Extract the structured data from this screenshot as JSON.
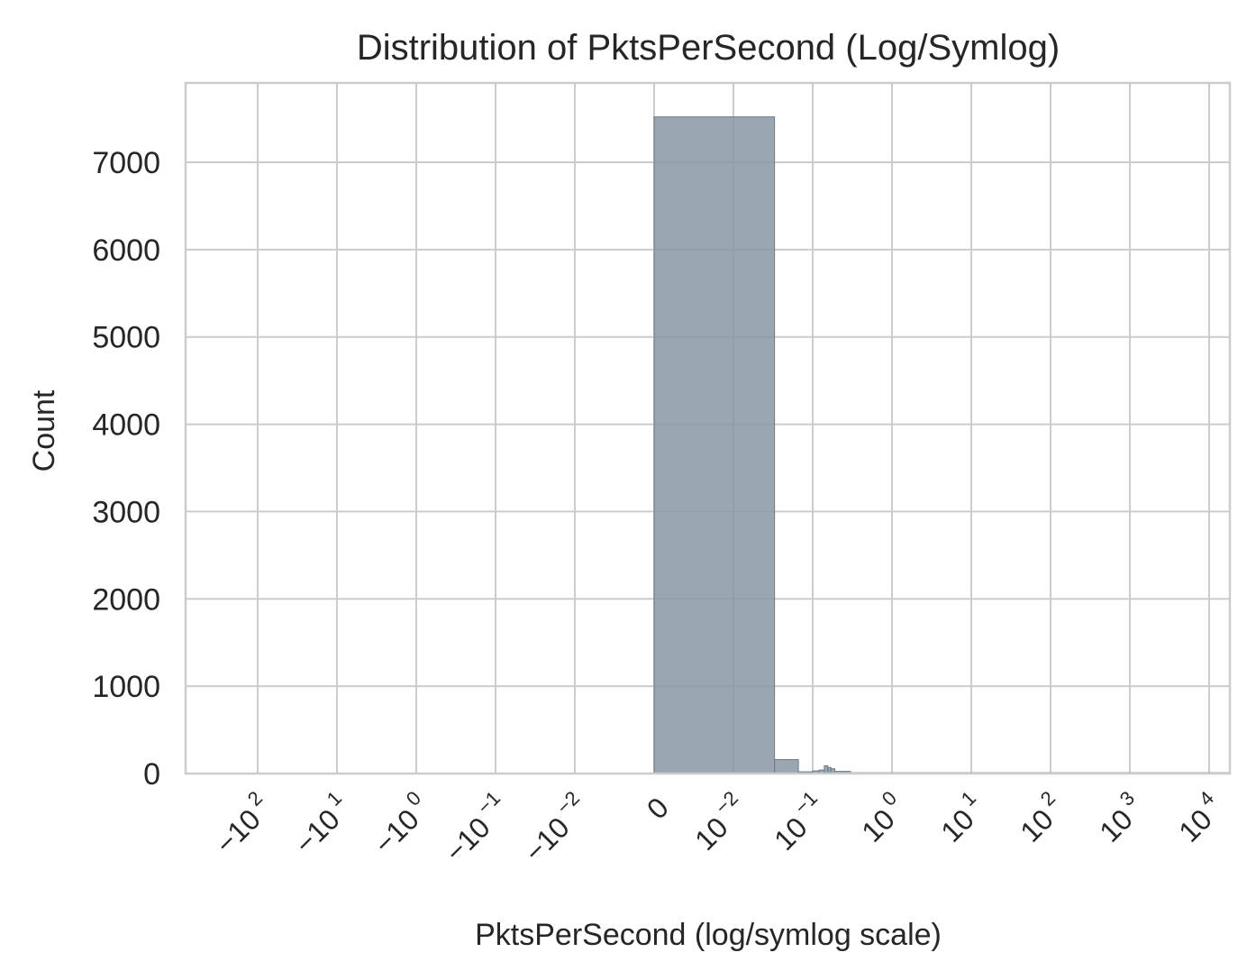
{
  "chart_data": {
    "type": "bar",
    "title": "Distribution of PktsPerSecond (Log/Symlog)",
    "xlabel": "PktsPerSecond (log/symlog scale)",
    "ylabel": "Count",
    "xscale": "symlog",
    "grid": true,
    "ylim": [
      0,
      7900
    ],
    "yticks": [
      {
        "value": 0,
        "label": "0"
      },
      {
        "value": 1000,
        "label": "1000"
      },
      {
        "value": 2000,
        "label": "2000"
      },
      {
        "value": 3000,
        "label": "3000"
      },
      {
        "value": 4000,
        "label": "4000"
      },
      {
        "value": 5000,
        "label": "5000"
      },
      {
        "value": 6000,
        "label": "6000"
      },
      {
        "value": 7000,
        "label": "7000"
      }
    ],
    "xticks": [
      {
        "value": -100,
        "base": "−10",
        "exp": "2"
      },
      {
        "value": -10,
        "base": "−10",
        "exp": "1"
      },
      {
        "value": -1,
        "base": "−10",
        "exp": "0"
      },
      {
        "value": -0.1,
        "base": "−10",
        "exp": "−1"
      },
      {
        "value": -0.01,
        "base": "−10",
        "exp": "−2"
      },
      {
        "value": 0,
        "base": "0",
        "exp": ""
      },
      {
        "value": 0.01,
        "base": "10",
        "exp": "−2"
      },
      {
        "value": 0.1,
        "base": "10",
        "exp": "−1"
      },
      {
        "value": 1,
        "base": "10",
        "exp": "0"
      },
      {
        "value": 10,
        "base": "10",
        "exp": "1"
      },
      {
        "value": 100,
        "base": "10",
        "exp": "2"
      },
      {
        "value": 1000,
        "base": "10",
        "exp": "3"
      },
      {
        "value": 10000,
        "base": "10",
        "exp": "4"
      }
    ],
    "bins": [
      {
        "x0": 0,
        "x1": 0.033,
        "count": 7520
      },
      {
        "x0": 0.033,
        "x1": 0.066,
        "count": 160
      },
      {
        "x0": 0.066,
        "x1": 0.1,
        "count": 20
      },
      {
        "x0": 0.1,
        "x1": 0.12,
        "count": 30
      },
      {
        "x0": 0.12,
        "x1": 0.14,
        "count": 40
      },
      {
        "x0": 0.14,
        "x1": 0.155,
        "count": 90
      },
      {
        "x0": 0.155,
        "x1": 0.17,
        "count": 70
      },
      {
        "x0": 0.17,
        "x1": 0.19,
        "count": 55
      },
      {
        "x0": 0.19,
        "x1": 0.3,
        "count": 25
      },
      {
        "x0": 0.3,
        "x1": 22000,
        "count": 10
      }
    ]
  }
}
